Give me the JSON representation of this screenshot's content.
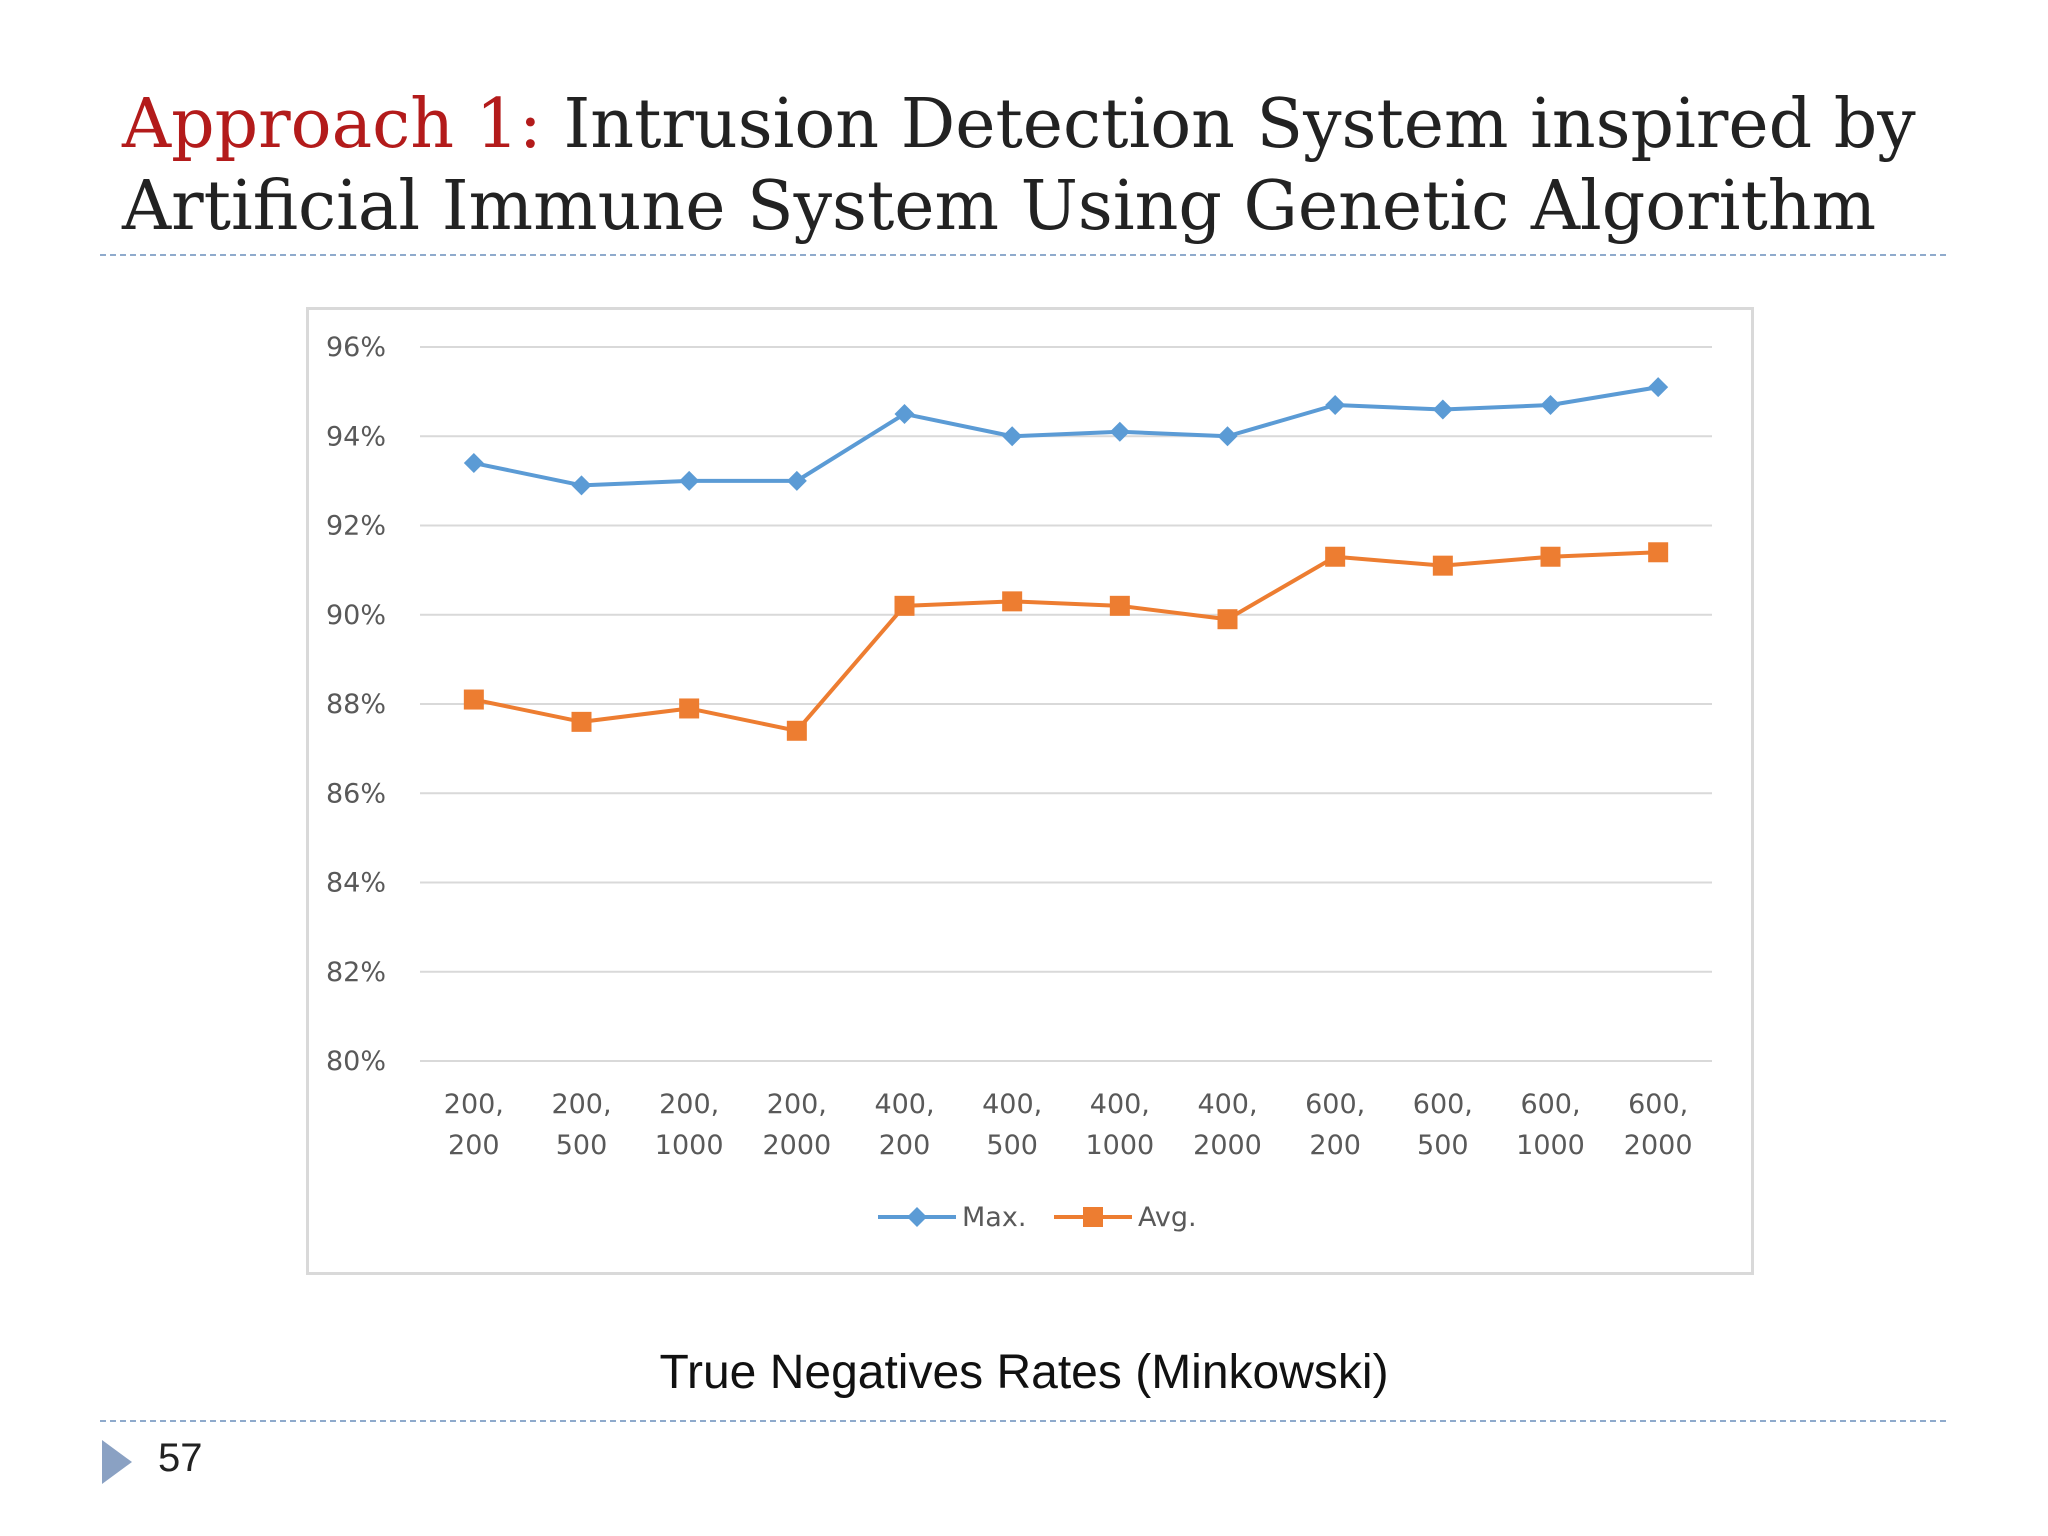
{
  "slide": {
    "title_prefix": "Approach 1:",
    "title_rest": " Intrusion Detection System inspired by Artificial Immune System Using Genetic Algorithm",
    "caption": "True Negatives Rates (Minkowski)",
    "slide_number": "57"
  },
  "colors": {
    "title_accent": "#b31b1b",
    "series_max": "#5b9bd5",
    "series_avg": "#ed7d31",
    "gridline": "#d9d9d9"
  },
  "chart_data": {
    "type": "line",
    "categories": [
      [
        "200,",
        "200"
      ],
      [
        "200,",
        "500"
      ],
      [
        "200,",
        "1000"
      ],
      [
        "200,",
        "2000"
      ],
      [
        "400,",
        "200"
      ],
      [
        "400,",
        "500"
      ],
      [
        "400,",
        "1000"
      ],
      [
        "400,",
        "2000"
      ],
      [
        "600,",
        "200"
      ],
      [
        "600,",
        "500"
      ],
      [
        "600,",
        "1000"
      ],
      [
        "600,",
        "2000"
      ]
    ],
    "series": [
      {
        "name": "Max.",
        "marker": "diamond",
        "color": "#5b9bd5",
        "values": [
          93.4,
          92.9,
          93.0,
          93.0,
          94.5,
          94.0,
          94.1,
          94.0,
          94.7,
          94.6,
          94.7,
          95.1
        ]
      },
      {
        "name": "Avg.",
        "marker": "square",
        "color": "#ed7d31",
        "values": [
          88.1,
          87.6,
          87.9,
          87.4,
          90.2,
          90.3,
          90.2,
          89.9,
          91.3,
          91.1,
          91.3,
          91.4
        ]
      }
    ],
    "ylim": [
      80,
      96
    ],
    "y_ticks": [
      "80%",
      "82%",
      "84%",
      "86%",
      "88%",
      "90%",
      "92%",
      "94%",
      "96%"
    ],
    "grid": true,
    "legend_position": "bottom",
    "title": "",
    "xlabel": "",
    "ylabel": ""
  }
}
